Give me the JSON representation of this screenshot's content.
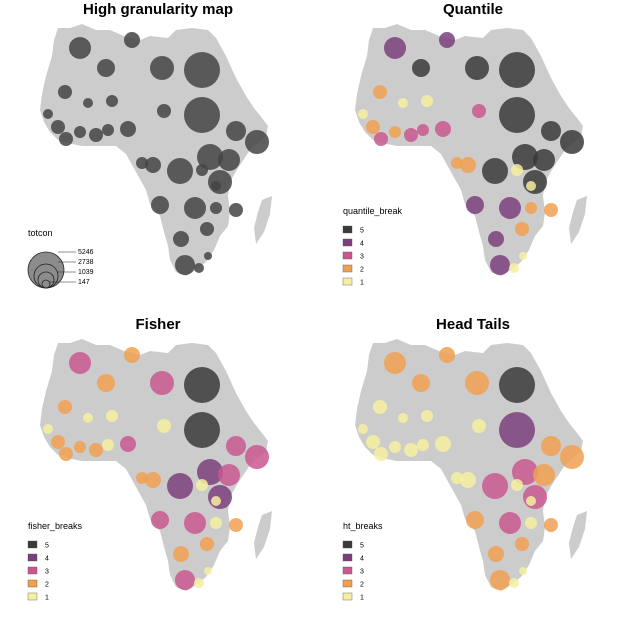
{
  "panels": [
    {
      "title": "High granularity map",
      "legend": {
        "title": "totcon",
        "kind": "size",
        "entries": [
          "5246",
          "2738",
          "1039",
          "147"
        ]
      }
    },
    {
      "title": "Quantile",
      "legend": {
        "title": "quantile_break",
        "kind": "class",
        "entries": [
          "5",
          "4",
          "3",
          "2",
          "1"
        ]
      }
    },
    {
      "title": "Fisher",
      "legend": {
        "title": "fisher_breaks",
        "kind": "class",
        "entries": [
          "5",
          "4",
          "3",
          "2",
          "1"
        ]
      }
    },
    {
      "title": "Head Tails",
      "legend": {
        "title": "ht_breaks",
        "kind": "class",
        "entries": [
          "5",
          "4",
          "3",
          "2",
          "1"
        ]
      }
    }
  ],
  "colors": {
    "land": "#cccccc",
    "gray_bubble": "#444444",
    "class_5": "#3a3a3a",
    "class_4": "#7b3f7b",
    "class_3": "#c8588f",
    "class_2": "#f0a050",
    "class_1": "#f5f0a0"
  }
}
